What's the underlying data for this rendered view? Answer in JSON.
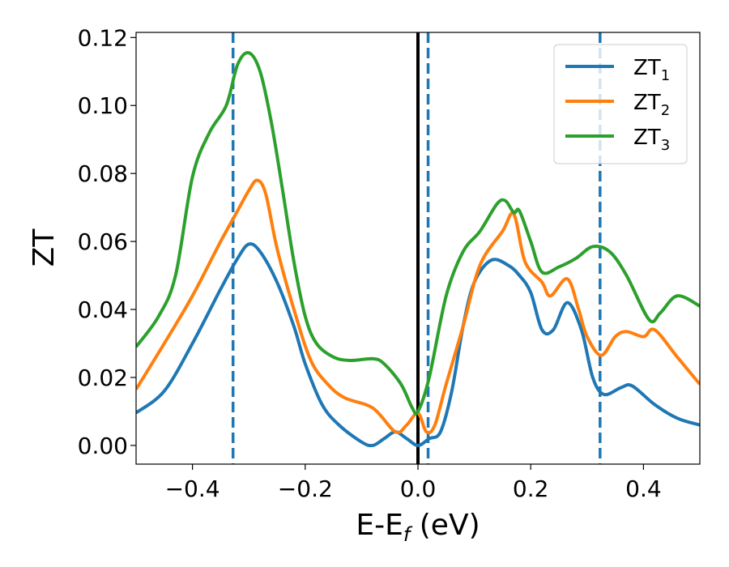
{
  "chart_data": {
    "type": "line",
    "xlabel": "E-E",
    "xlabel_sub": "f",
    "xlabel_unit": " (eV)",
    "ylabel": "ZT",
    "xlim": [
      -0.5,
      0.5
    ],
    "ylim": [
      -0.0055,
      0.1215
    ],
    "xticks": [
      -0.4,
      -0.2,
      0.0,
      0.2,
      0.4
    ],
    "xtick_labels": [
      "−0.4",
      "−0.2",
      "0.0",
      "0.2",
      "0.4"
    ],
    "yticks": [
      0.0,
      0.02,
      0.04,
      0.06,
      0.08,
      0.1,
      0.12
    ],
    "ytick_labels": [
      "0.00",
      "0.02",
      "0.04",
      "0.06",
      "0.08",
      "0.10",
      "0.12"
    ],
    "grid": false,
    "legend_position": "top-right",
    "vertical_lines": [
      {
        "x": -0.328,
        "style": "dashed",
        "color": "#1f77b4"
      },
      {
        "x": 0.0,
        "style": "solid",
        "color": "#000000"
      },
      {
        "x": 0.018,
        "style": "dashed",
        "color": "#1f77b4"
      },
      {
        "x": 0.323,
        "style": "dashed",
        "color": "#1f77b4"
      }
    ],
    "series": [
      {
        "name": "ZT",
        "name_sub": "1",
        "color": "#1f77b4",
        "points": [
          [
            -0.5,
            0.0096
          ],
          [
            -0.45,
            0.016
          ],
          [
            -0.4,
            0.03
          ],
          [
            -0.35,
            0.046
          ],
          [
            -0.32,
            0.055
          ],
          [
            -0.3,
            0.0592
          ],
          [
            -0.28,
            0.057
          ],
          [
            -0.25,
            0.048
          ],
          [
            -0.22,
            0.035
          ],
          [
            -0.2,
            0.024
          ],
          [
            -0.17,
            0.012
          ],
          [
            -0.14,
            0.006
          ],
          [
            -0.1,
            0.001
          ],
          [
            -0.08,
            0.0
          ],
          [
            -0.06,
            0.002
          ],
          [
            -0.04,
            0.004
          ],
          [
            -0.02,
            0.002
          ],
          [
            0.0,
            0.0
          ],
          [
            0.02,
            0.002
          ],
          [
            0.04,
            0.004
          ],
          [
            0.06,
            0.016
          ],
          [
            0.08,
            0.035
          ],
          [
            0.1,
            0.048
          ],
          [
            0.13,
            0.0545
          ],
          [
            0.16,
            0.053
          ],
          [
            0.18,
            0.05
          ],
          [
            0.2,
            0.045
          ],
          [
            0.22,
            0.034
          ],
          [
            0.24,
            0.034
          ],
          [
            0.265,
            0.042
          ],
          [
            0.29,
            0.034
          ],
          [
            0.31,
            0.02
          ],
          [
            0.33,
            0.015
          ],
          [
            0.36,
            0.017
          ],
          [
            0.38,
            0.0175
          ],
          [
            0.42,
            0.012
          ],
          [
            0.46,
            0.008
          ],
          [
            0.5,
            0.006
          ]
        ]
      },
      {
        "name": "ZT",
        "name_sub": "2",
        "color": "#ff7f0e",
        "points": [
          [
            -0.5,
            0.0165
          ],
          [
            -0.45,
            0.03
          ],
          [
            -0.4,
            0.044
          ],
          [
            -0.35,
            0.06
          ],
          [
            -0.32,
            0.069
          ],
          [
            -0.3,
            0.075
          ],
          [
            -0.285,
            0.078
          ],
          [
            -0.27,
            0.074
          ],
          [
            -0.25,
            0.058
          ],
          [
            -0.22,
            0.04
          ],
          [
            -0.19,
            0.025
          ],
          [
            -0.16,
            0.018
          ],
          [
            -0.13,
            0.014
          ],
          [
            -0.08,
            0.011
          ],
          [
            -0.04,
            0.004
          ],
          [
            -0.02,
            0.006
          ],
          [
            0.0,
            0.0095
          ],
          [
            0.015,
            0.004
          ],
          [
            0.03,
            0.006
          ],
          [
            0.05,
            0.018
          ],
          [
            0.08,
            0.035
          ],
          [
            0.11,
            0.053
          ],
          [
            0.15,
            0.063
          ],
          [
            0.17,
            0.068
          ],
          [
            0.19,
            0.054
          ],
          [
            0.22,
            0.048
          ],
          [
            0.235,
            0.044
          ],
          [
            0.265,
            0.049
          ],
          [
            0.285,
            0.04
          ],
          [
            0.3,
            0.032
          ],
          [
            0.325,
            0.0265
          ],
          [
            0.35,
            0.032
          ],
          [
            0.37,
            0.0335
          ],
          [
            0.4,
            0.032
          ],
          [
            0.42,
            0.034
          ],
          [
            0.46,
            0.026
          ],
          [
            0.5,
            0.018
          ]
        ]
      },
      {
        "name": "ZT",
        "name_sub": "3",
        "color": "#2ca02c",
        "points": [
          [
            -0.5,
            0.029
          ],
          [
            -0.46,
            0.038
          ],
          [
            -0.43,
            0.05
          ],
          [
            -0.4,
            0.079
          ],
          [
            -0.37,
            0.092
          ],
          [
            -0.34,
            0.1
          ],
          [
            -0.32,
            0.112
          ],
          [
            -0.3,
            0.1155
          ],
          [
            -0.28,
            0.11
          ],
          [
            -0.26,
            0.095
          ],
          [
            -0.24,
            0.075
          ],
          [
            -0.22,
            0.054
          ],
          [
            -0.2,
            0.038
          ],
          [
            -0.18,
            0.03
          ],
          [
            -0.15,
            0.026
          ],
          [
            -0.12,
            0.025
          ],
          [
            -0.08,
            0.0255
          ],
          [
            -0.06,
            0.024
          ],
          [
            -0.03,
            0.018
          ],
          [
            -0.01,
            0.011
          ],
          [
            0.0,
            0.01
          ],
          [
            0.02,
            0.02
          ],
          [
            0.05,
            0.044
          ],
          [
            0.08,
            0.057
          ],
          [
            0.11,
            0.063
          ],
          [
            0.14,
            0.071
          ],
          [
            0.155,
            0.072
          ],
          [
            0.17,
            0.0685
          ],
          [
            0.18,
            0.069
          ],
          [
            0.2,
            0.06
          ],
          [
            0.22,
            0.051
          ],
          [
            0.25,
            0.0525
          ],
          [
            0.28,
            0.055
          ],
          [
            0.31,
            0.0585
          ],
          [
            0.34,
            0.057
          ],
          [
            0.37,
            0.05
          ],
          [
            0.41,
            0.037
          ],
          [
            0.43,
            0.039
          ],
          [
            0.46,
            0.044
          ],
          [
            0.5,
            0.041
          ]
        ]
      }
    ]
  }
}
